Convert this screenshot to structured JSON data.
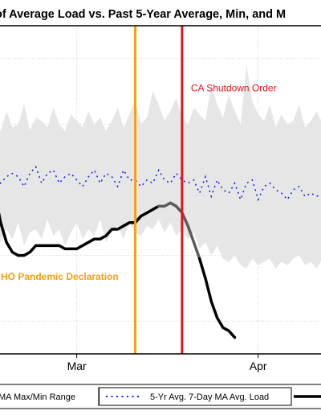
{
  "chart_data": {
    "type": "line",
    "title": "of Average Load vs. Past 5-Year Average, Min, and M",
    "x_tick_labels": [
      "Mar",
      "Apr"
    ],
    "x_ticks": [
      32,
      63
    ],
    "xlim": [
      18.2,
      75.8
    ],
    "ylim": [
      0,
      100
    ],
    "grid": true,
    "legend_position": "bottom",
    "colors": {
      "range_fill": "#e6e6e6",
      "five_year_avg": "#1a1aee",
      "current": "#000000",
      "who_line": "#f5a00f",
      "ca_line": "#e8101a"
    },
    "annotations": [
      {
        "label": "CA Shutdown Order",
        "x": 50,
        "color": "#e8101a"
      },
      {
        "label": "HO Pandemic Declaration",
        "x": 42,
        "color": "#f5a00f"
      }
    ],
    "series": [
      {
        "name": "MA Max/Min Range",
        "x": [
          18,
          19,
          20,
          21,
          22,
          23,
          24,
          25,
          26,
          27,
          28,
          29,
          30,
          31,
          32,
          33,
          34,
          35,
          36,
          37,
          38,
          39,
          40,
          41,
          42,
          43,
          44,
          45,
          46,
          47,
          48,
          49,
          50,
          51,
          52,
          53,
          54,
          55,
          56,
          57,
          58,
          59,
          60,
          61,
          62,
          63,
          64,
          65,
          66,
          67,
          68,
          69,
          70,
          71,
          72,
          73,
          74,
          75,
          76
        ],
        "upper": [
          70,
          68,
          74,
          69,
          70,
          76,
          68,
          72,
          71,
          69,
          75,
          70,
          68,
          73,
          71,
          69,
          74,
          70,
          72,
          68,
          71,
          75,
          69,
          73,
          77,
          70,
          72,
          80,
          76,
          71,
          74,
          78,
          72,
          70,
          75,
          73,
          71,
          82,
          76,
          72,
          79,
          74,
          70,
          88,
          77,
          73,
          71,
          76,
          69,
          73,
          70,
          71,
          76,
          69,
          71,
          74,
          70,
          78,
          70
        ],
        "lower": [
          36,
          34,
          38,
          35,
          40,
          33,
          37,
          38,
          35,
          41,
          36,
          38,
          33,
          37,
          40,
          35,
          38,
          36,
          41,
          34,
          37,
          39,
          35,
          40,
          37,
          36,
          39,
          38,
          41,
          37,
          40,
          36,
          38,
          35,
          37,
          32,
          34,
          30,
          33,
          29,
          28,
          30,
          27,
          26,
          29,
          27,
          28,
          29,
          26,
          28,
          27,
          29,
          30,
          27,
          28,
          26,
          29,
          28,
          35
        ]
      },
      {
        "name": "5-Yr Avg. 7-Day MA Avg. Load",
        "x": [
          18,
          19,
          20,
          21,
          22,
          23,
          24,
          25,
          26,
          27,
          28,
          29,
          30,
          31,
          32,
          33,
          34,
          35,
          36,
          37,
          38,
          39,
          40,
          41,
          42,
          43,
          44,
          45,
          46,
          47,
          48,
          49,
          50,
          51,
          52,
          53,
          54,
          55,
          56,
          57,
          58,
          59,
          60,
          61,
          62,
          63,
          64,
          65,
          66,
          67,
          68,
          69,
          70,
          71,
          72,
          73,
          74,
          75,
          76
        ],
        "values": [
          55,
          52,
          54,
          55,
          54,
          51,
          55,
          57,
          52,
          55,
          56,
          52,
          54,
          55,
          53,
          51,
          54,
          56,
          52,
          55,
          54,
          51,
          56,
          53,
          53,
          51,
          53,
          52,
          56,
          53,
          52,
          55,
          53,
          52,
          53,
          49,
          54,
          48,
          53,
          50,
          49,
          52,
          47,
          52,
          53,
          47,
          51,
          52,
          50,
          49,
          47,
          50,
          51,
          48,
          49,
          48,
          49,
          49,
          50
        ]
      },
      {
        "name": "Load",
        "x": [
          18,
          19,
          20,
          21,
          22,
          23,
          24,
          25,
          26,
          27,
          28,
          29,
          30,
          31,
          32,
          33,
          34,
          35,
          36,
          37,
          38,
          39,
          40,
          41,
          42,
          43,
          44,
          45,
          46,
          47,
          48,
          49,
          50,
          51,
          52,
          53,
          54,
          55,
          56,
          57,
          58,
          59
        ],
        "values": [
          49,
          40,
          34,
          31,
          30,
          30,
          31,
          33,
          33,
          33,
          33,
          33,
          32,
          32,
          32,
          33,
          34,
          35,
          35,
          36,
          38,
          38,
          39,
          40,
          40,
          42,
          43,
          44,
          45,
          45,
          46,
          45,
          43,
          39,
          34,
          29,
          23,
          16,
          11,
          8,
          7,
          5
        ]
      }
    ]
  }
}
